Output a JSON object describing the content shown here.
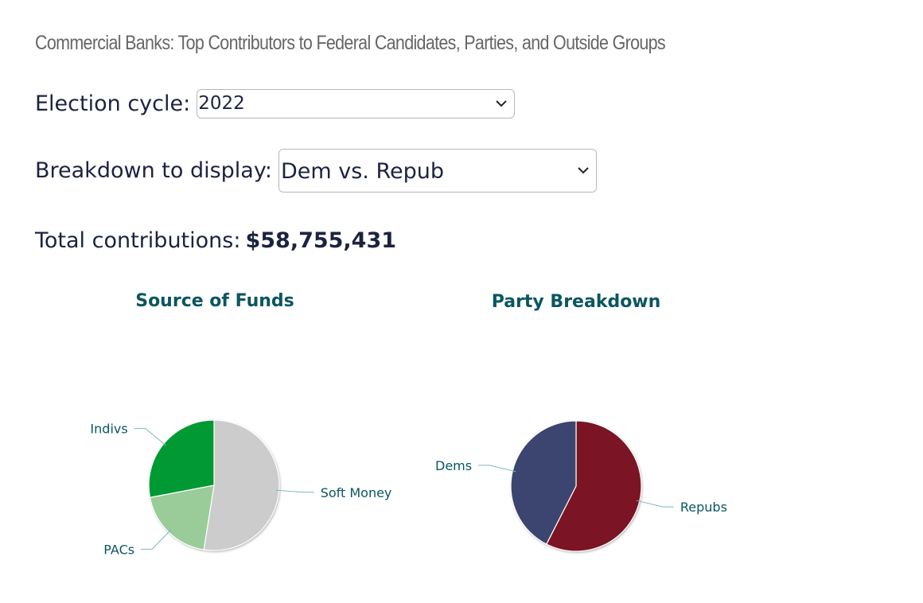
{
  "page": {
    "title": "Commercial Banks: Top Contributors to Federal Candidates, Parties, and Outside Groups"
  },
  "filters": {
    "cycle_label": "Election cycle:",
    "cycle_value": "2022",
    "breakdown_label": "Breakdown to display:",
    "breakdown_value": "Dem vs. Repub"
  },
  "totals": {
    "label": "Total contributions:",
    "value": "$58,755,431"
  },
  "colors": {
    "title_text": "#666666",
    "body_text": "#1c2340",
    "chart_title": "#0b5660",
    "indivs": "#009933",
    "pacs": "#99cc99",
    "soft_money": "#cccccc",
    "dems": "#3c456f",
    "repubs": "#7b1424",
    "leader_line": "#7fb7c0"
  },
  "chart_data": [
    {
      "type": "pie",
      "title": "Source of Funds",
      "series": [
        {
          "name": "Soft Money",
          "label": "Soft Money",
          "value": 52.5,
          "color": "#cccccc"
        },
        {
          "name": "PACs",
          "label": "PACs",
          "value": 19.5,
          "color": "#99cc99"
        },
        {
          "name": "Indivs",
          "label": "Indivs",
          "value": 28.0,
          "color": "#009933"
        }
      ],
      "unit": "percent (estimated)"
    },
    {
      "type": "pie",
      "title": "Party Breakdown",
      "series": [
        {
          "name": "Repubs",
          "label": "Repubs",
          "value": 57.5,
          "color": "#7b1424"
        },
        {
          "name": "Dems",
          "label": "Dems",
          "value": 42.5,
          "color": "#3c456f"
        }
      ],
      "unit": "percent (estimated)"
    }
  ]
}
